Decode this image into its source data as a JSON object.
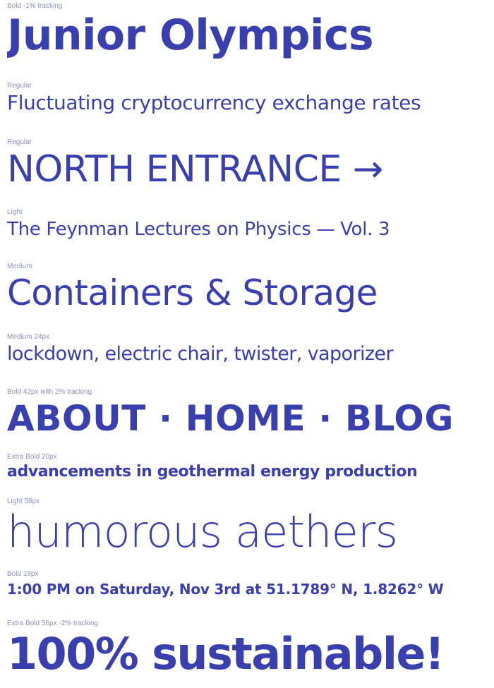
{
  "colors": {
    "text": "#3a3fae",
    "label": "#8b8fc9",
    "background": "#ffffff"
  },
  "specimens": [
    {
      "label": "Bold -1% tracking",
      "sample": "Junior Olympics"
    },
    {
      "label": "Regular",
      "sample": "Fluctuating cryptocurrency exchange rates"
    },
    {
      "label": "Regular",
      "sample": "NORTH ENTRANCE →"
    },
    {
      "label": "Light",
      "sample": "The Feynman Lectures on Physics — Vol. 3"
    },
    {
      "label": "Medium",
      "sample": "Containers & Storage"
    },
    {
      "label": "Medium 24px",
      "sample": "lockdown, electric chair, twister, vaporizer"
    },
    {
      "label": "Bold 42px with 2% tracking",
      "sample": "ABOUT · HOME · BLOG"
    },
    {
      "label": "Extra Bold 20px",
      "sample": "advancements in geothermal energy production"
    },
    {
      "label": "Light 58px",
      "sample": "humorous aethers"
    },
    {
      "label": "Bold 18px",
      "sample": "1:00 PM on Saturday, Nov 3rd at 51.1789° N, 1.8262° W"
    },
    {
      "label": "Extra Bold 56px -2% tracking",
      "sample": "100% sustainable!"
    }
  ]
}
